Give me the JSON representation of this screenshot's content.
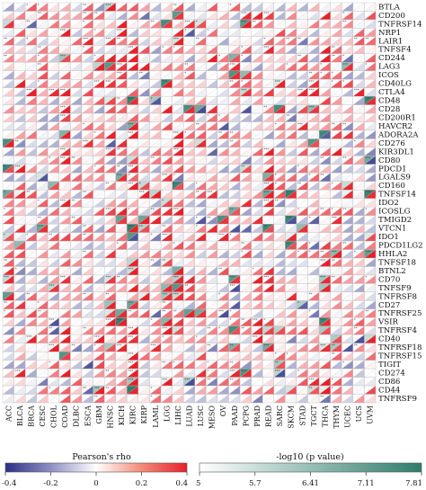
{
  "chart_data": {
    "type": "heatmap",
    "title": "",
    "cell_style": "split triangles: upper-left = -log10(p value), lower-right = Pearson's rho",
    "cancers": [
      "ACC",
      "BLCA",
      "BRCA",
      "CESC",
      "CHOL",
      "COAD",
      "DLBC",
      "ESCA",
      "GBM",
      "HNSC",
      "KICH",
      "KIRC",
      "KIRP",
      "LAML",
      "LGG",
      "LIHC",
      "LUAD",
      "LUSC",
      "MESO",
      "OV",
      "PAAD",
      "PCPG",
      "PRAD",
      "READ",
      "SARC",
      "SKCM",
      "STAD",
      "TGCT",
      "THCA",
      "THYM",
      "UCEC",
      "UCS",
      "UVM"
    ],
    "genes": [
      "BTLA",
      "CD200",
      "TNFRSF14",
      "NRP1",
      "LAIR1",
      "TNFSF4",
      "CD244",
      "LAG3",
      "ICOS",
      "CD40LG",
      "CTLA4",
      "CD48",
      "CD28",
      "CD200R1",
      "HAVCR2",
      "ADORA2A",
      "CD276",
      "KIR3DL1",
      "CD80",
      "PDCD1",
      "LGALS9",
      "CD160",
      "TNFSF14",
      "IDO2",
      "ICOSLG",
      "TMIGD2",
      "VTCN1",
      "IDO1",
      "PDCD1LG2",
      "HHLA2",
      "TNFSF18",
      "BTNL2",
      "CD70",
      "TNFSF9",
      "TNFRSF8",
      "CD27",
      "TNFRSF25",
      "VSIR",
      "TNFRSF4",
      "CD40",
      "TNFRSF18",
      "TNFRSF15",
      "TIGIT",
      "CD274",
      "CD86",
      "CD44",
      "TNFRSF9"
    ],
    "colorbar_rho": {
      "title": "Pearson's rho",
      "ticks": [
        "-0.4",
        "-0.2",
        "0",
        "0.2",
        "0.4"
      ],
      "range": [
        -0.4,
        0.4
      ],
      "low_color": "#2b2f86",
      "mid_color": "#ffffff",
      "high_color": "#e8202a"
    },
    "colorbar_p": {
      "title": "-log10 (p value)",
      "ticks": [
        "5",
        "5.7",
        "6.41",
        "7.11",
        "7.81"
      ],
      "range": [
        5,
        7.81
      ],
      "low_color": "#ffffff",
      "high_color": "#2e7d6b"
    },
    "significance_marks": [
      "*",
      "**",
      "***"
    ],
    "grid": true
  }
}
